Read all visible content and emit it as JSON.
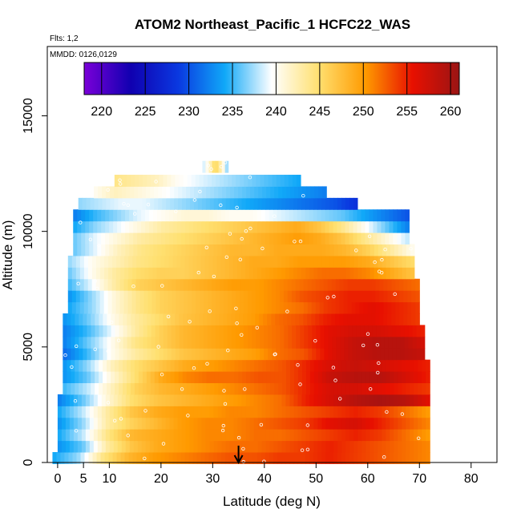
{
  "chart_data": {
    "type": "heatmap",
    "title": "ATOM2 Northeast_Pacific_1 HCFC22_WAS",
    "flights_label": "Flts: 1,2",
    "dates_label": "MMDD: 0126,0129",
    "xlabel": "Latitude (deg N)",
    "ylabel": "Altitude (m)",
    "xlim": [
      -2,
      85
    ],
    "ylim": [
      0,
      18000
    ],
    "x_ticks": [
      0,
      5,
      10,
      20,
      30,
      40,
      50,
      60,
      70,
      80
    ],
    "y_ticks": [
      0,
      5000,
      10000,
      15000
    ],
    "colorbar": {
      "min": 218,
      "max": 261,
      "ticks": [
        220,
        225,
        230,
        235,
        240,
        245,
        250,
        255,
        260
      ],
      "colors": [
        "#7a00d8",
        "#1000b0",
        "#0a38e0",
        "#10a8f8",
        "#ffffff",
        "#ffe070",
        "#ff9a00",
        "#e81000",
        "#9a1414"
      ]
    },
    "marker_latitude": 35,
    "bands": [
      {
        "alt": 200,
        "lat": [
          -1,
          72
        ],
        "values": [
          234,
          237,
          244,
          248,
          250,
          251,
          252,
          253,
          253,
          254,
          254,
          255,
          254,
          253,
          252,
          251
        ]
      },
      {
        "alt": 700,
        "lat": [
          0,
          72
        ],
        "values": [
          233,
          236,
          243,
          247,
          249,
          250,
          251,
          252,
          252,
          253,
          254,
          255,
          254,
          253,
          252,
          251
        ]
      },
      {
        "alt": 1200,
        "lat": [
          0,
          72
        ],
        "values": [
          234,
          238,
          244,
          248,
          249,
          250,
          251,
          251,
          252,
          252,
          253,
          254,
          255,
          254,
          252,
          250
        ]
      },
      {
        "alt": 1700,
        "lat": [
          0,
          72
        ],
        "values": [
          233,
          237,
          243,
          246,
          248,
          250,
          251,
          251,
          252,
          253,
          254,
          256,
          257,
          255,
          253,
          251
        ]
      },
      {
        "alt": 2200,
        "lat": [
          0,
          72
        ],
        "values": [
          234,
          238,
          243,
          247,
          249,
          250,
          250,
          251,
          251,
          252,
          253,
          254,
          255,
          254,
          252,
          250
        ]
      },
      {
        "alt": 2700,
        "lat": [
          0,
          72
        ],
        "values": [
          232,
          236,
          241,
          245,
          247,
          248,
          249,
          250,
          251,
          252,
          255,
          257,
          259,
          260,
          259,
          256
        ]
      },
      {
        "alt": 3200,
        "lat": [
          1,
          72
        ],
        "values": [
          235,
          238,
          242,
          246,
          248,
          249,
          250,
          251,
          252,
          253,
          255,
          257,
          257,
          256,
          255,
          254
        ]
      },
      {
        "alt": 3700,
        "lat": [
          1,
          72
        ],
        "values": [
          233,
          236,
          241,
          245,
          249,
          251,
          252,
          252,
          253,
          253,
          255,
          258,
          259,
          259,
          257,
          255
        ]
      },
      {
        "alt": 4200,
        "lat": [
          1,
          72
        ],
        "values": [
          233,
          237,
          242,
          245,
          247,
          249,
          250,
          251,
          252,
          253,
          255,
          257,
          258,
          257,
          256,
          255
        ]
      },
      {
        "alt": 4700,
        "lat": [
          1,
          71
        ],
        "values": [
          231,
          235,
          240,
          243,
          245,
          247,
          248,
          249,
          250,
          252,
          253,
          256,
          258,
          259,
          259,
          258
        ]
      },
      {
        "alt": 5200,
        "lat": [
          1,
          71
        ],
        "values": [
          232,
          236,
          240,
          244,
          246,
          248,
          249,
          250,
          251,
          252,
          254,
          256,
          258,
          259,
          259,
          257
        ]
      },
      {
        "alt": 5700,
        "lat": [
          1,
          71
        ],
        "values": [
          232,
          235,
          239,
          243,
          246,
          248,
          249,
          250,
          251,
          252,
          254,
          256,
          257,
          257,
          256,
          255
        ]
      },
      {
        "alt": 6200,
        "lat": [
          1,
          70
        ],
        "values": [
          233,
          236,
          240,
          243,
          245,
          247,
          248,
          249,
          250,
          252,
          253,
          255,
          256,
          256,
          255,
          254
        ]
      },
      {
        "alt": 6700,
        "lat": [
          2,
          70
        ],
        "values": [
          234,
          237,
          241,
          244,
          246,
          247,
          248,
          249,
          250,
          251,
          252,
          254,
          255,
          256,
          255,
          254
        ]
      },
      {
        "alt": 7200,
        "lat": [
          2,
          70
        ],
        "values": [
          233,
          237,
          241,
          244,
          246,
          247,
          248,
          249,
          250,
          251,
          253,
          254,
          255,
          255,
          254,
          253
        ]
      },
      {
        "alt": 7700,
        "lat": [
          2,
          70
        ],
        "values": [
          235,
          239,
          243,
          246,
          247,
          248,
          249,
          250,
          250,
          251,
          252,
          253,
          254,
          254,
          253,
          252
        ]
      },
      {
        "alt": 8200,
        "lat": [
          2,
          69
        ],
        "values": [
          236,
          240,
          243,
          245,
          246,
          246,
          247,
          248,
          249,
          250,
          251,
          252,
          252,
          251,
          249,
          247
        ]
      },
      {
        "alt": 8700,
        "lat": [
          2,
          69
        ],
        "values": [
          237,
          240,
          242,
          244,
          245,
          246,
          247,
          248,
          249,
          249,
          250,
          250,
          250,
          249,
          247,
          245
        ]
      },
      {
        "alt": 9200,
        "lat": [
          3,
          69
        ],
        "values": [
          236,
          239,
          242,
          244,
          245,
          246,
          247,
          248,
          248,
          249,
          249,
          249,
          248,
          246,
          243,
          240
        ]
      },
      {
        "alt": 9700,
        "lat": [
          3,
          68
        ],
        "values": [
          236,
          239,
          241,
          243,
          244,
          245,
          246,
          247,
          248,
          249,
          250,
          249,
          247,
          244,
          241,
          238
        ]
      },
      {
        "alt": 10200,
        "lat": [
          3,
          68
        ],
        "values": [
          234,
          237,
          239,
          241,
          243,
          244,
          245,
          246,
          247,
          248,
          249,
          247,
          244,
          240,
          236,
          232
        ]
      },
      {
        "alt": 10700,
        "lat": [
          3,
          68
        ],
        "values": [
          232,
          235,
          237,
          239,
          240,
          241,
          241,
          240,
          240,
          239,
          238,
          237,
          236,
          234,
          232,
          230
        ]
      },
      {
        "alt": 11200,
        "lat": [
          4,
          58
        ],
        "values": [
          237,
          238,
          239,
          239,
          238,
          237,
          236,
          235,
          234,
          233,
          232,
          231,
          230,
          228
        ]
      },
      {
        "alt": 11700,
        "lat": [
          7,
          52
        ],
        "values": [
          240,
          242,
          241,
          240,
          239,
          238,
          237,
          236,
          235,
          234,
          233,
          232
        ]
      },
      {
        "alt": 12200,
        "lat": [
          11,
          47
        ],
        "values": [
          244,
          243,
          242,
          240,
          239,
          238,
          237,
          236,
          235,
          234
        ]
      },
      {
        "alt": 12800,
        "lat": [
          28,
          33
        ],
        "values": [
          238,
          241,
          246,
          242,
          236
        ]
      }
    ]
  }
}
